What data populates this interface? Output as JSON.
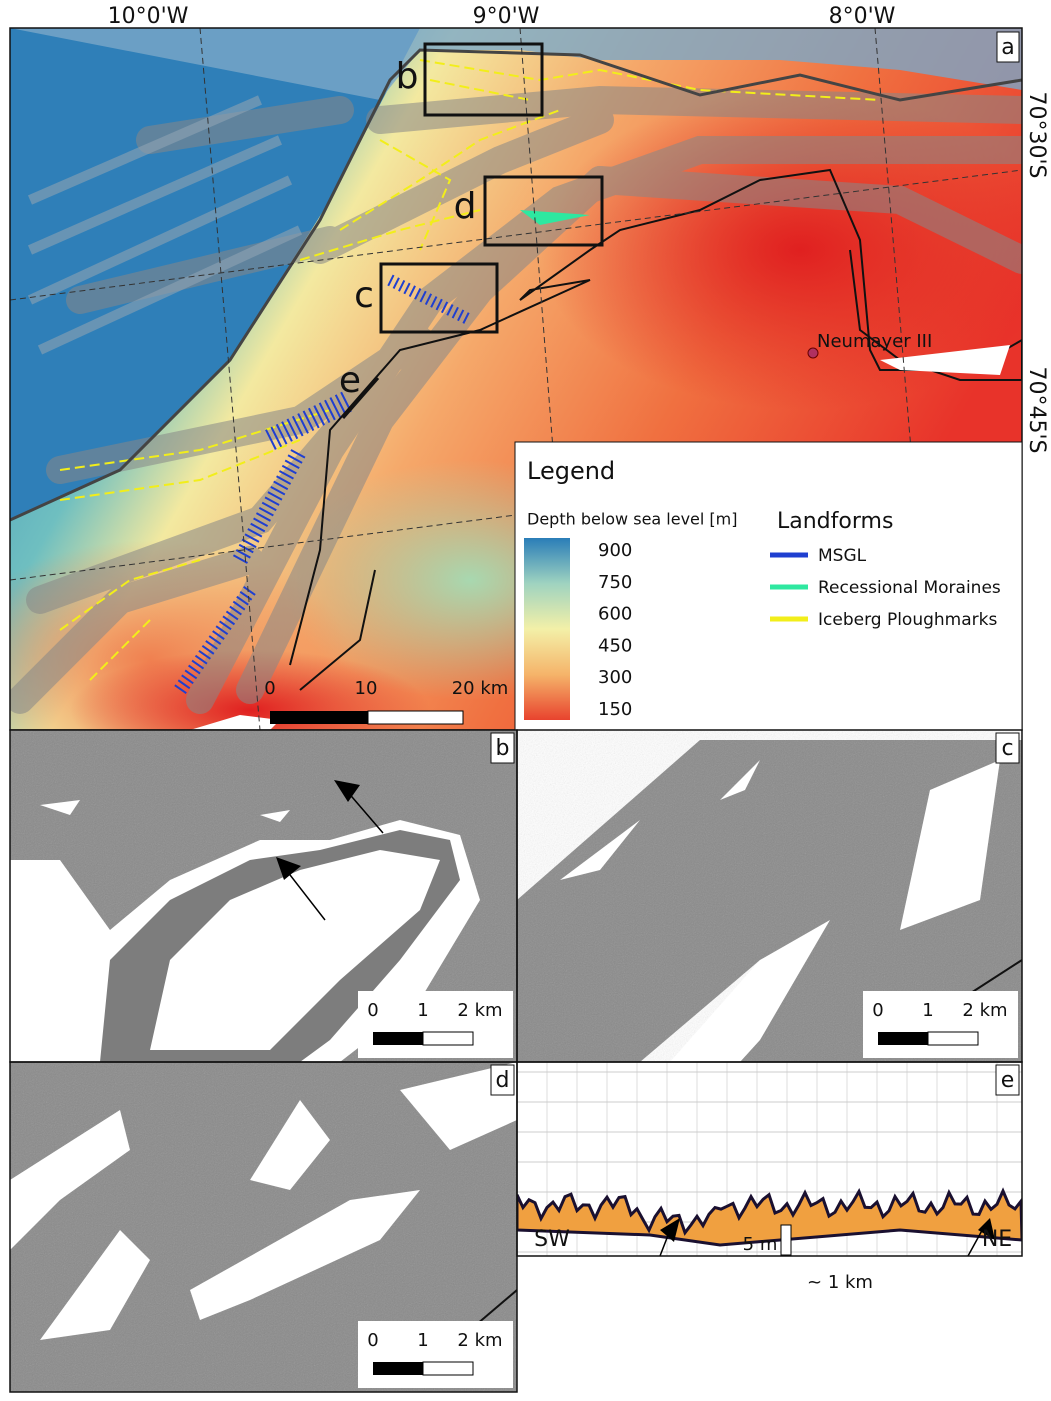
{
  "panels": {
    "a": {
      "label": "a",
      "lon_labels": [
        "10°0'W",
        "9°0'W",
        "8°0'W"
      ],
      "lat_labels": [
        "70°30'S",
        "70°45'S"
      ],
      "box_labels": [
        "b",
        "d",
        "c",
        "e"
      ],
      "station": "Neumayer III",
      "scale": [
        "0",
        "10",
        "20 km"
      ],
      "legend": {
        "title": "Legend",
        "colorbar_title": "Depth below sea level [m]",
        "colorbar_ticks": [
          "900",
          "750",
          "600",
          "450",
          "300",
          "150"
        ],
        "colorbar_colors": [
          "#2a7db8",
          "#9fd3c0",
          "#f3f0a8",
          "#f5b46a",
          "#e8432e"
        ],
        "landforms_title": "Landforms",
        "items": [
          {
            "label": "MSGL",
            "color": "#1f3fd0"
          },
          {
            "label": "Recessional Moraines",
            "color": "#2ee8a0"
          },
          {
            "label": "Iceberg Ploughmarks",
            "color": "#f2ee1a"
          }
        ]
      }
    },
    "b": {
      "label": "b",
      "scale": [
        "0",
        "1",
        "2 km"
      ]
    },
    "c": {
      "label": "c",
      "scale": [
        "0",
        "1",
        "2 km"
      ]
    },
    "d": {
      "label": "d",
      "scale": [
        "0",
        "1",
        "2 km"
      ]
    },
    "e": {
      "label": "e",
      "left": "SW",
      "right": "NE",
      "vscale": "5 m",
      "hscale": "~ 1 km"
    }
  }
}
